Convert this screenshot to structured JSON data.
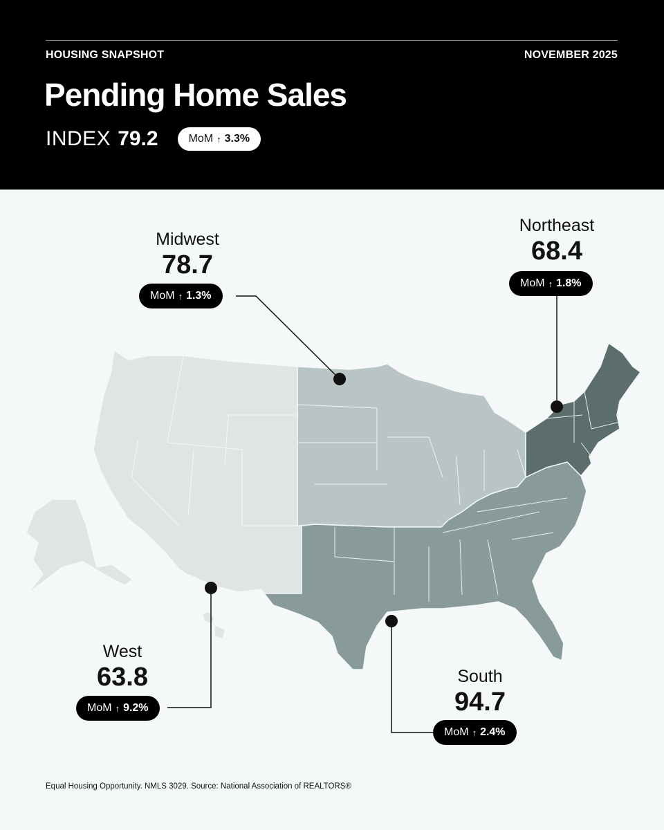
{
  "header": {
    "kicker_left": "HOUSING SNAPSHOT",
    "kicker_right": "NOVEMBER 2025",
    "title": "Pending Home Sales",
    "index_label": "INDEX",
    "index_value": "79.2",
    "mom_label": "MoM",
    "mom_arrow": "↑",
    "mom_value": "3.3%"
  },
  "regions": {
    "midwest": {
      "name": "Midwest",
      "value": "78.7",
      "mom_label": "MoM",
      "mom_arrow": "↑",
      "mom_value": "1.3%",
      "color": "#b9c5c4"
    },
    "northeast": {
      "name": "Northeast",
      "value": "68.4",
      "mom_label": "MoM",
      "mom_arrow": "↑",
      "mom_value": "1.8%",
      "color": "#5b6e6c"
    },
    "west": {
      "name": "West",
      "value": "63.8",
      "mom_label": "MoM",
      "mom_arrow": "↑",
      "mom_value": "9.2%",
      "color": "#e0e4e3"
    },
    "south": {
      "name": "South",
      "value": "94.7",
      "mom_label": "MoM",
      "mom_arrow": "↑",
      "mom_value": "2.4%",
      "color": "#899b99"
    }
  },
  "colors": {
    "header_bg": "#000000",
    "page_bg": "#f4f8f9",
    "state_border": "#f4f8f9",
    "leader_line": "#111111"
  },
  "footer": {
    "text": "Equal Housing Opportunity. NMLS 3029. Source: National Association of REALTORS®"
  }
}
